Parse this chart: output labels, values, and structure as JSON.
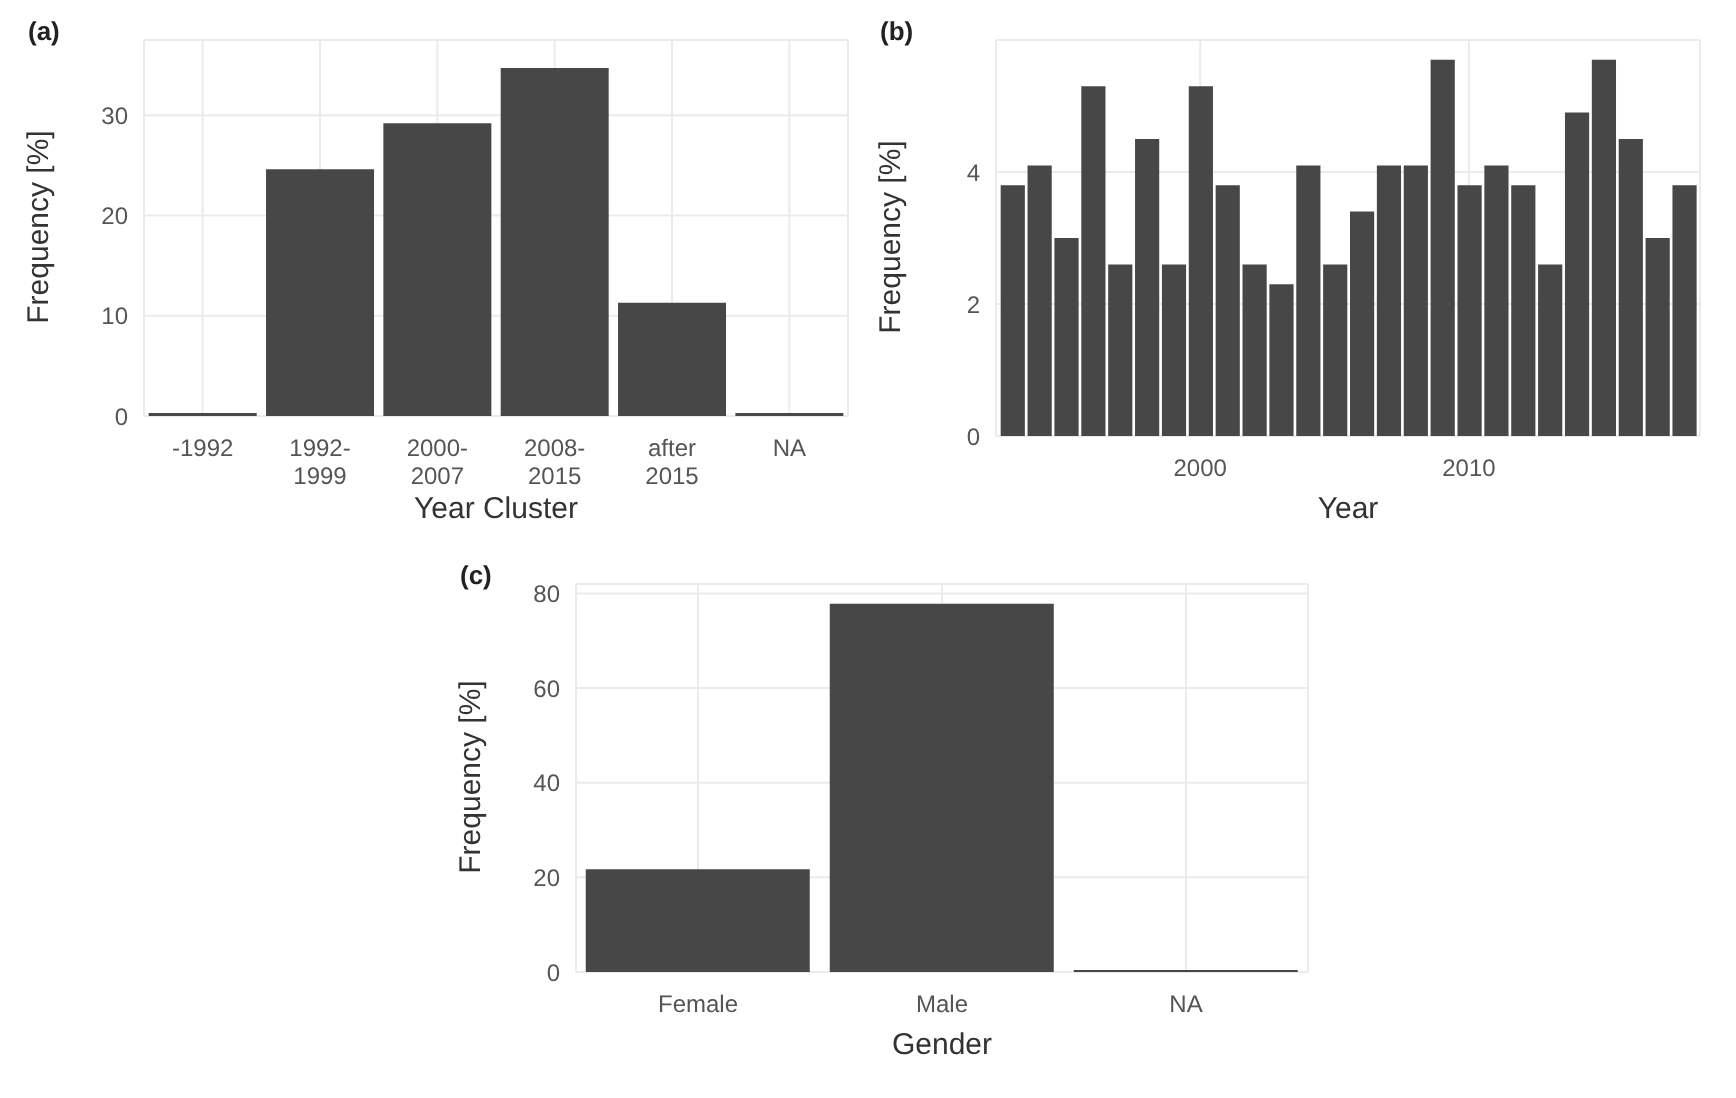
{
  "chart_data": [
    {
      "type": "bar",
      "title": "(a)",
      "xlabel": "Year Cluster",
      "ylabel": "Frequency [%]",
      "categories": [
        "-1992",
        "1992-\n1999",
        "2000-\n2007",
        "2008-\n2015",
        "after\n2015",
        "NA"
      ],
      "values": [
        0.3,
        24.6,
        29.2,
        34.7,
        11.3,
        0.3
      ],
      "color": "#474747",
      "ylim": [
        0,
        37.5
      ],
      "yticks": [
        0,
        10,
        20,
        30
      ],
      "grid": true
    },
    {
      "type": "bar",
      "title": "(b)",
      "xlabel": "Year",
      "ylabel": "Frequency [%]",
      "x": [
        1993,
        1994,
        1995,
        1996,
        1997,
        1998,
        1999,
        2000,
        2001,
        2002,
        2003,
        2004,
        2005,
        2006,
        2007,
        2008,
        2009,
        2010,
        2011,
        2012,
        2013,
        2014,
        2015,
        2016,
        2017,
        2018
      ],
      "values": [
        3.8,
        4.1,
        3.0,
        5.3,
        2.6,
        4.5,
        2.6,
        5.3,
        3.8,
        2.6,
        2.3,
        4.1,
        2.6,
        3.4,
        4.1,
        4.1,
        5.7,
        3.8,
        4.1,
        3.8,
        2.6,
        4.9,
        5.7,
        4.5,
        3.0,
        3.8
      ],
      "color": "#474747",
      "xlim": [
        1992.4,
        2018.6
      ],
      "xticks": [
        2000,
        2010
      ],
      "ylim": [
        0,
        6
      ],
      "yticks": [
        0,
        2,
        4
      ],
      "grid": true
    },
    {
      "type": "bar",
      "title": "(c)",
      "xlabel": "Gender",
      "ylabel": "Frequency [%]",
      "categories": [
        "Female",
        "Male",
        "NA"
      ],
      "values": [
        21.7,
        77.8,
        0.4
      ],
      "color": "#474747",
      "ylim": [
        0,
        82
      ],
      "yticks": [
        0,
        20,
        40,
        60,
        80
      ],
      "grid": true
    }
  ]
}
